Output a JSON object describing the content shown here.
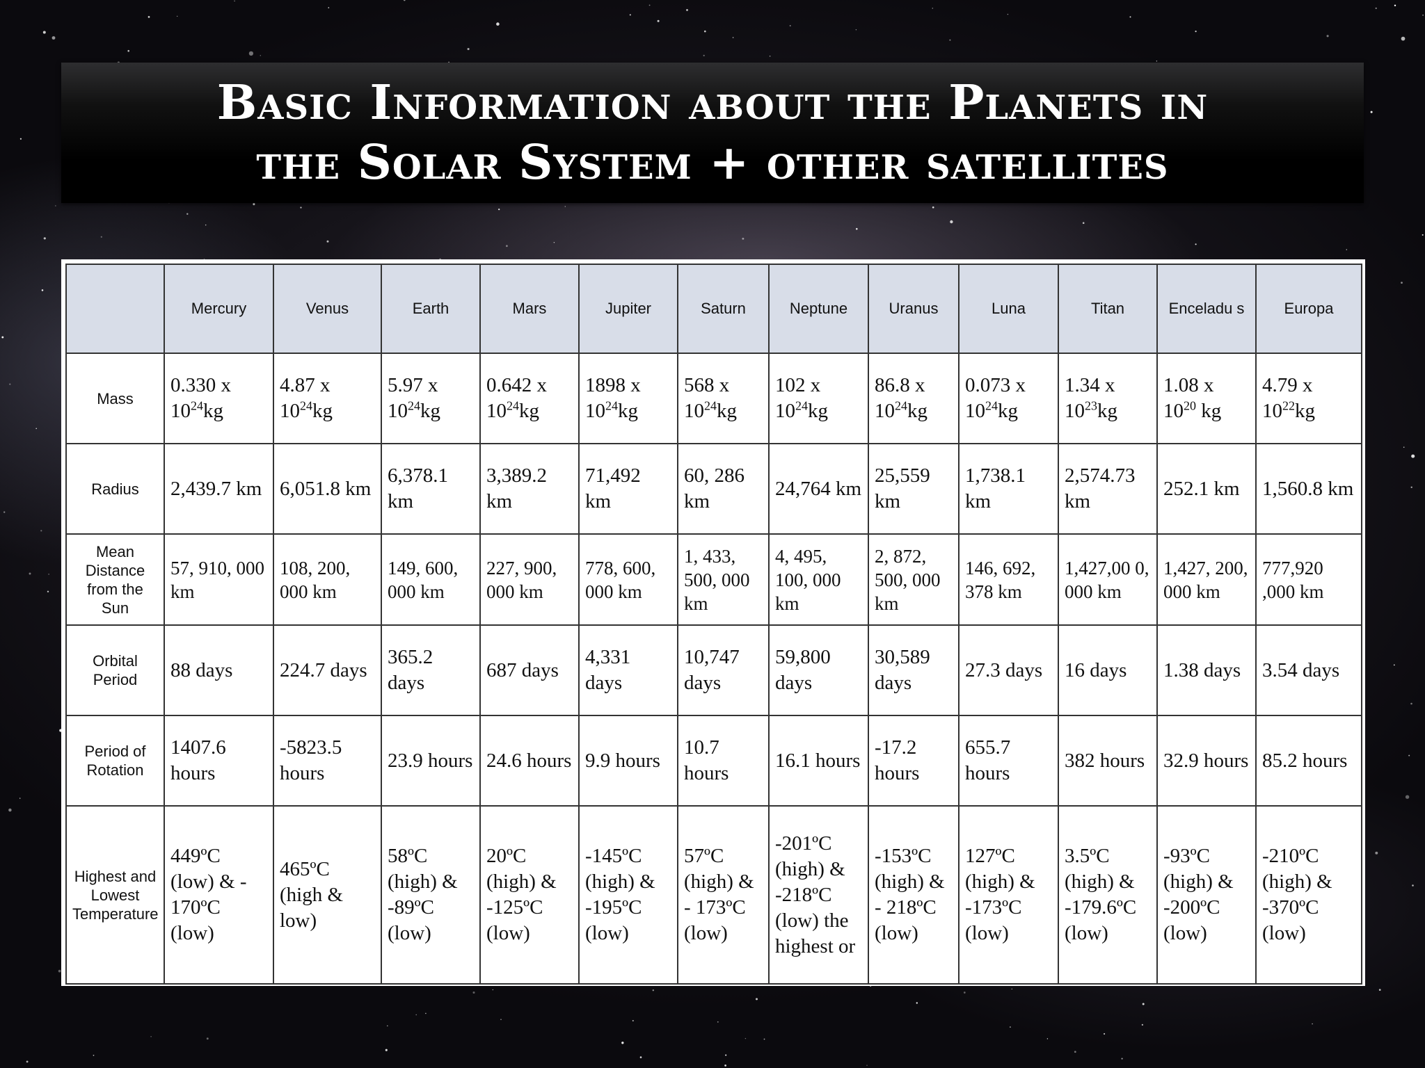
{
  "title": {
    "line1": "Basic Information about the Planets in",
    "line2": "the Solar System + other satellites"
  },
  "table": {
    "columns": [
      "Mercury",
      "Venus",
      "Earth",
      "Mars",
      "Jupiter",
      "Saturn",
      "Neptune",
      "Uranus",
      "Luna",
      "Titan",
      "Enceladu s",
      "Europa"
    ],
    "rows": {
      "mass": {
        "label": "Mass",
        "cells": [
          {
            "coef": "0.330 x",
            "base": "10",
            "exp": "24",
            "unit": "kg"
          },
          {
            "coef": "4.87 x",
            "base": "10",
            "exp": "24",
            "unit": "kg"
          },
          {
            "coef": "5.97 x",
            "base": "10",
            "exp": "24",
            "unit": "kg"
          },
          {
            "coef": "0.642 x",
            "base": "10",
            "exp": "24",
            "unit": "kg"
          },
          {
            "coef": "1898 x",
            "base": "10",
            "exp": "24",
            "unit": "kg"
          },
          {
            "coef": "568 x",
            "base": "10",
            "exp": "24",
            "unit": "kg"
          },
          {
            "coef": "102 x",
            "base": "10",
            "exp": "24",
            "unit": "kg"
          },
          {
            "coef": "86.8 x",
            "base": "10",
            "exp": "24",
            "unit": "kg"
          },
          {
            "coef": "0.073 x",
            "base": "10",
            "exp": "24",
            "unit": "kg"
          },
          {
            "coef": "1.34 x",
            "base": "10",
            "exp": "23",
            "unit": "kg"
          },
          {
            "coef": "1.08 x",
            "base": "10",
            "exp": "20",
            "unit": " kg"
          },
          {
            "coef": "4.79 x",
            "base": "10",
            "exp": "22",
            "unit": "kg"
          }
        ]
      },
      "radius": {
        "label": "Radius",
        "cells": [
          "2,439.7 km",
          "6,051.8 km",
          "6,378.1 km",
          "3,389.2 km",
          "71,492 km",
          "60, 286 km",
          "24,764 km",
          "25,559 km",
          "1,738.1 km",
          "2,574.73 km",
          "252.1 km",
          "1,560.8 km"
        ]
      },
      "distance": {
        "label": "Mean Distance from the Sun",
        "cells": [
          "57, 910, 000 km",
          "108, 200, 000 km",
          "149, 600, 000 km",
          "227, 900, 000 km",
          "778, 600, 000 km",
          "1, 433, 500, 000 km",
          "4, 495, 100, 000 km",
          "2, 872, 500, 000 km",
          "146, 692, 378 km",
          "1,427,00 0, 000 km",
          "1,427, 200, 000 km",
          "777,920 ,000 km"
        ]
      },
      "orbital": {
        "label": "Orbital Period",
        "cells": [
          "88 days",
          "224.7 days",
          "365.2 days",
          "687 days",
          "4,331 days",
          "10,747 days",
          "59,800 days",
          "30,589 days",
          "27.3 days",
          "16 days",
          "1.38 days",
          "3.54 days"
        ]
      },
      "rotation": {
        "label": "Period of Rotation",
        "cells": [
          "1407.6 hours",
          "-5823.5 hours",
          "23.9 hours",
          "24.6 hours",
          "9.9 hours",
          "10.7 hours",
          "16.1 hours",
          "-17.2 hours",
          "655.7 hours",
          "382 hours",
          "32.9 hours",
          "85.2 hours"
        ]
      },
      "temperature": {
        "label": "Highest and Lowest Temperature",
        "cells": [
          "449ºC (low) & - 170ºC (low)",
          "465ºC (high & low)",
          "58ºC (high) & -89ºC (low)",
          "20ºC (high) & -125ºC (low)",
          "-145ºC (high) & -195ºC (low)",
          "57ºC (high) & - 173ºC (low)",
          "-201ºC (high) & -218ºC (low) the highest or",
          "-153ºC (high) & - 218ºC (low)",
          "127ºC (high) & -173ºC (low)",
          "3.5ºC (high) & -179.6ºC (low)",
          "-93ºC (high) & -200ºC (low)",
          "-210ºC (high) & -370ºC (low)"
        ]
      }
    }
  }
}
